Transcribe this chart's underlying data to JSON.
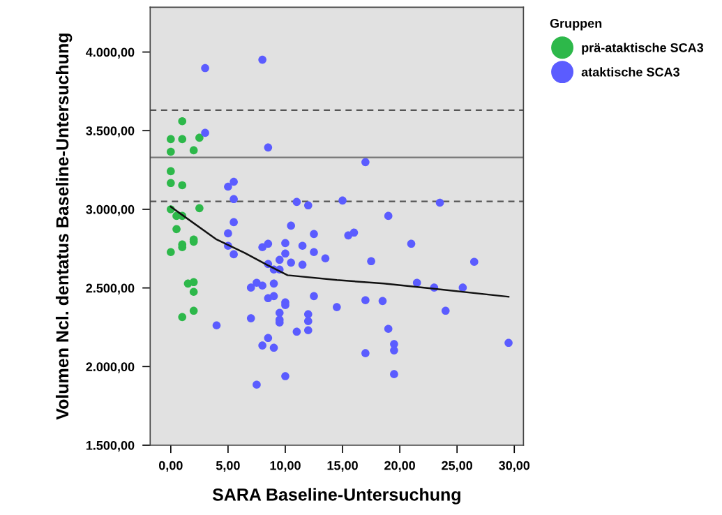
{
  "chart_data": {
    "type": "scatter",
    "xlabel": "SARA Baseline-Untersuchung",
    "ylabel": "Volumen Ncl. dentatus Baseline-Untersuchung",
    "legend_title": "Gruppen",
    "legend": "right",
    "marker": "circle",
    "grid": false,
    "xlim": [
      -1.8,
      30.8
    ],
    "ylim": [
      1500,
      4285
    ],
    "xticks": [
      {
        "value": 0,
        "label": "0,00"
      },
      {
        "value": 5,
        "label": "5,00"
      },
      {
        "value": 10,
        "label": "10,00"
      },
      {
        "value": 15,
        "label": "15,00"
      },
      {
        "value": 20,
        "label": "20,00"
      },
      {
        "value": 25,
        "label": "25,00"
      },
      {
        "value": 30,
        "label": "30,00"
      }
    ],
    "yticks": [
      {
        "value": 1500,
        "label": "1.500,00"
      },
      {
        "value": 2000,
        "label": "2.000,00"
      },
      {
        "value": 2500,
        "label": "2.500,00"
      },
      {
        "value": 3000,
        "label": "3.000,00"
      },
      {
        "value": 3500,
        "label": "3.500,00"
      },
      {
        "value": 4000,
        "label": "4.000,00"
      }
    ],
    "ref_lines": [
      {
        "axis": "y",
        "value": 3630,
        "line_style": "dashed",
        "color": "#555555"
      },
      {
        "axis": "y",
        "value": 3330,
        "line_style": "solid",
        "color": "#777777"
      },
      {
        "axis": "y",
        "value": 3050,
        "line_style": "dashed",
        "color": "#555555"
      }
    ],
    "series": [
      {
        "name": "prä-ataktische SCA3",
        "color": "#2db84a",
        "x": [
          0,
          0,
          1,
          1,
          2.5,
          2,
          0,
          0,
          1,
          0,
          2.5,
          0.5,
          1,
          0.5,
          2,
          2,
          1,
          1,
          0,
          1.5,
          2,
          2,
          2,
          1
        ],
        "values": [
          3446,
          3366,
          3446,
          3560,
          3455,
          3375,
          3242,
          3167,
          3153,
          3000,
          3007,
          2958,
          2958,
          2874,
          2808,
          2794,
          2776,
          2759,
          2728,
          2528,
          2537,
          2475,
          2355,
          2315
        ]
      },
      {
        "name": "ataktische SCA3",
        "color": "#5b5cff",
        "x": [
          3,
          8,
          3,
          8.5,
          17,
          5,
          5.5,
          5.5,
          11,
          12,
          15,
          23.5,
          19,
          10.5,
          5.5,
          5,
          12.5,
          16,
          15.5,
          21,
          8,
          8.5,
          10,
          11.5,
          5,
          10,
          12.5,
          5.5,
          13.5,
          9.5,
          10.5,
          11.5,
          17.5,
          26.5,
          8.5,
          9,
          9.5,
          7,
          7.5,
          8,
          9,
          21.5,
          23,
          25.5,
          8.5,
          9,
          12.5,
          10,
          10,
          17,
          18.5,
          14.5,
          24,
          9.5,
          12,
          7,
          9.5,
          9.5,
          12,
          19,
          11,
          12,
          8.5,
          8,
          9,
          19.5,
          19.5,
          29.5,
          17,
          10,
          7.5,
          19.5,
          4
        ],
        "values": [
          3898,
          3951,
          3486,
          3393,
          3300,
          3144,
          3175,
          3065,
          3047,
          3025,
          3056,
          3042,
          2958,
          2896,
          2918,
          2847,
          2843,
          2852,
          2834,
          2781,
          2759,
          2781,
          2785,
          2768,
          2768,
          2719,
          2728,
          2714,
          2688,
          2679,
          2661,
          2648,
          2670,
          2666,
          2652,
          2617,
          2617,
          2502,
          2533,
          2515,
          2528,
          2533,
          2502,
          2502,
          2435,
          2448,
          2448,
          2408,
          2391,
          2422,
          2417,
          2378,
          2355,
          2342,
          2333,
          2307,
          2298,
          2280,
          2289,
          2240,
          2222,
          2231,
          2182,
          2134,
          2120,
          2143,
          2103,
          2151,
          2085,
          1939,
          1885,
          1952,
          2262
        ]
      },
      {
        "type": "line",
        "color": "#111111",
        "marker": "none",
        "x": [
          0,
          4,
          6.45,
          8.5,
          10.2,
          14.5,
          18.6,
          22.7,
          29.5
        ],
        "values": [
          3016,
          2808,
          2723,
          2643,
          2581,
          2550,
          2528,
          2497,
          2444
        ]
      }
    ]
  }
}
